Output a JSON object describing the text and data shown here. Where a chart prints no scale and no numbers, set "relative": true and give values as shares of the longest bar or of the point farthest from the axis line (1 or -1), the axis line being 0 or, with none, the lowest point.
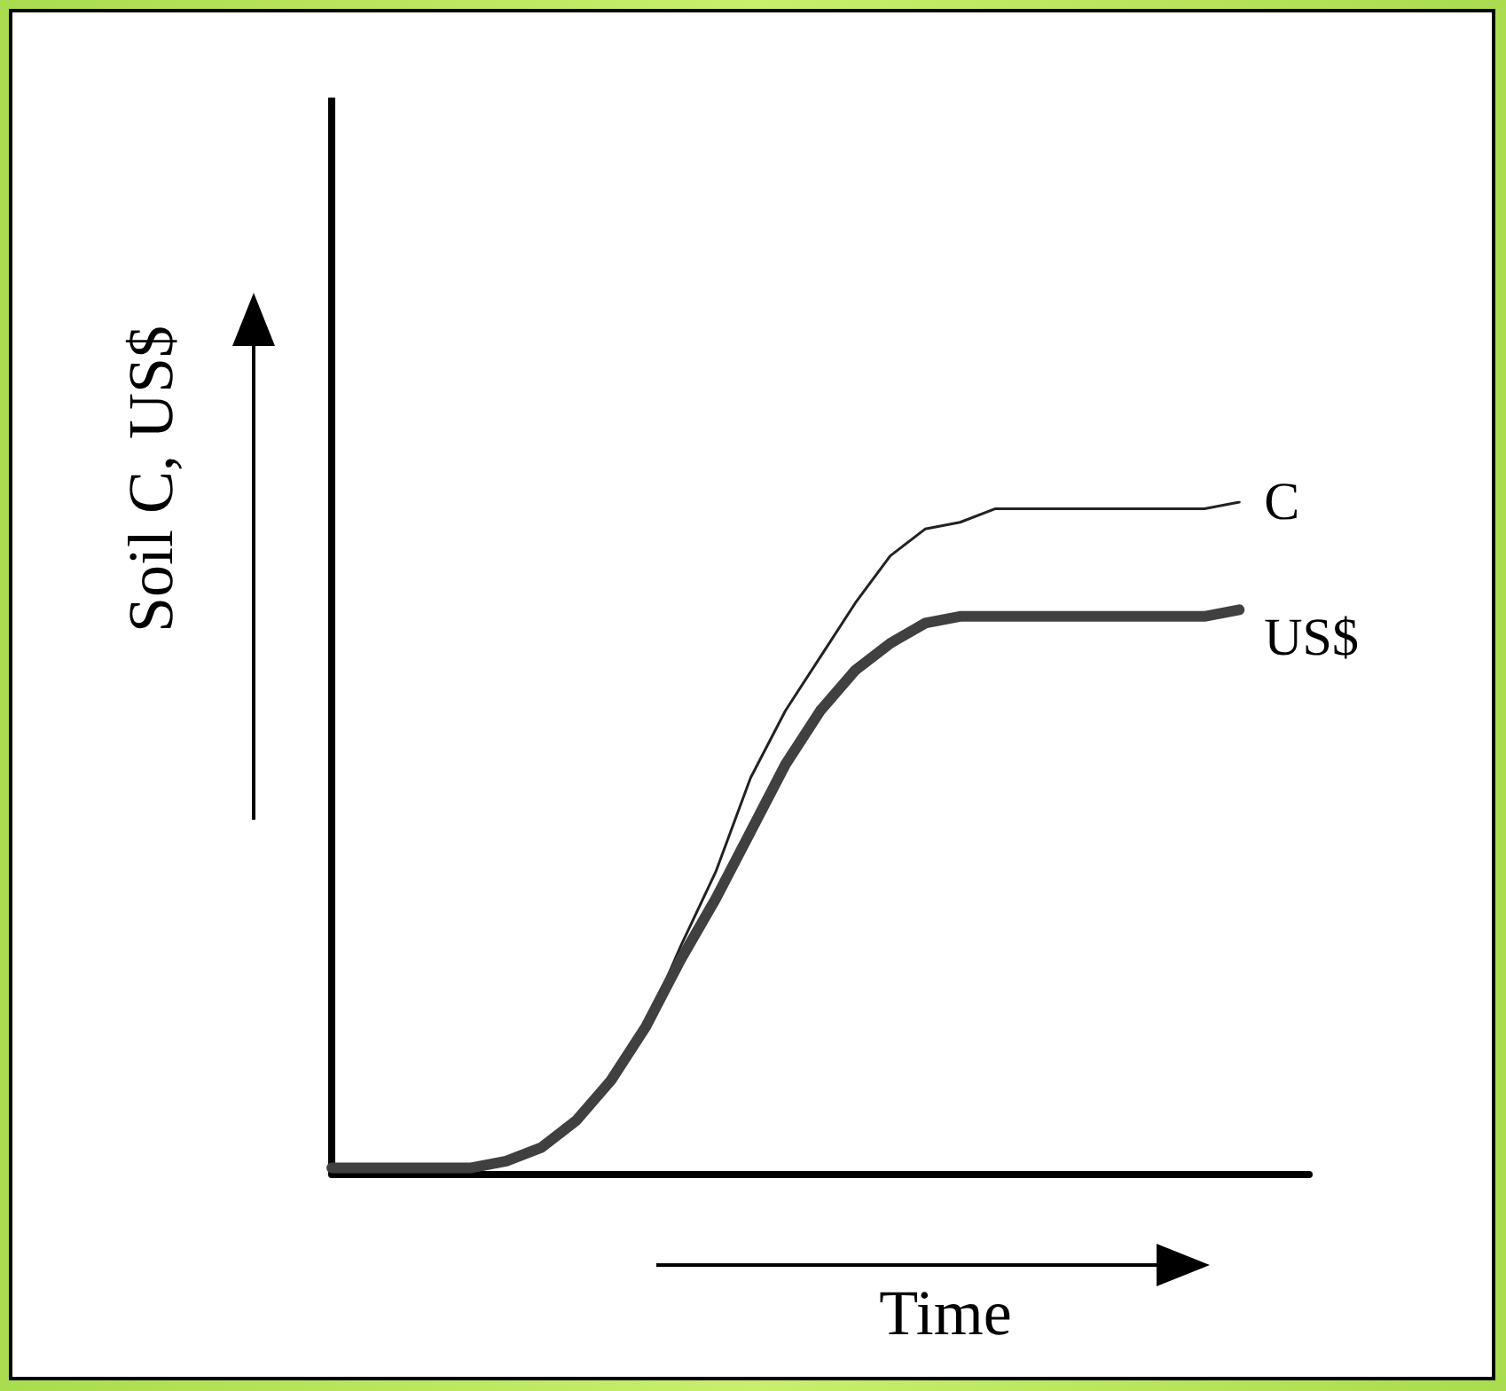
{
  "chart_data": {
    "type": "line",
    "relative": true,
    "xlabel": "Time",
    "ylabel": "Soil C, US$",
    "grid": false,
    "legend": false,
    "marker": "none",
    "categories": [
      null,
      null,
      null,
      null,
      null,
      null,
      null,
      null,
      null,
      null,
      null,
      null,
      null,
      null,
      null,
      null,
      null,
      null,
      null,
      null,
      null,
      null,
      null,
      null,
      null,
      null,
      null,
      null,
      null
    ],
    "series": [
      {
        "name": "C",
        "color": "#222222",
        "values": [
          0.01,
          0.01,
          0.01,
          0.01,
          0.01,
          0.02,
          0.04,
          0.08,
          0.14,
          0.22,
          0.34,
          0.45,
          0.59,
          0.69,
          0.77,
          0.85,
          0.92,
          0.96,
          0.97,
          0.99,
          0.99,
          0.99,
          0.99,
          0.99,
          0.99,
          0.99,
          1,
          null,
          null
        ]
      },
      {
        "name": "US$",
        "color": "#404040",
        "values": [
          0.01,
          0.01,
          0.01,
          0.01,
          0.01,
          0.02,
          0.04,
          0.08,
          0.14,
          0.22,
          0.32,
          0.41,
          0.51,
          0.61,
          0.69,
          0.75,
          0.79,
          0.82,
          0.83,
          0.83,
          0.83,
          0.83,
          0.83,
          0.83,
          0.83,
          0.83,
          0.84,
          null,
          null
        ]
      }
    ]
  }
}
